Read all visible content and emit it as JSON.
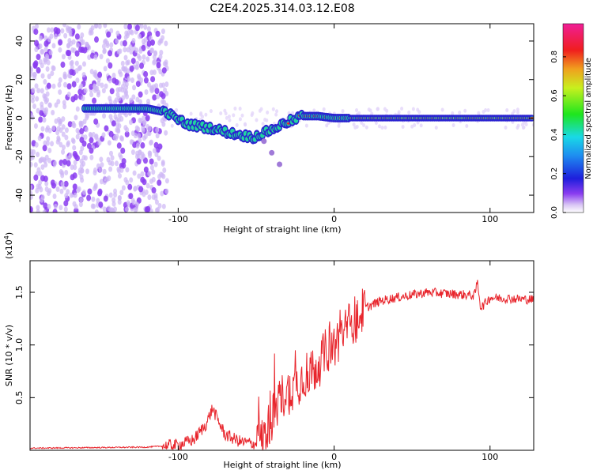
{
  "title": "C2E4.2025.314.03.12.E08",
  "colors": {
    "snr_line": "#e8252c",
    "track_core": "#e8252c",
    "track_mid": "#22d3a0",
    "track_edge": "#2a22d0",
    "noise": "#8a3cf0"
  },
  "chart_data": [
    {
      "type": "heatmap",
      "name": "spectrogram",
      "xlabel": "Height of straight line (km)",
      "ylabel": "Frequency (Hz)",
      "xlim": [
        -195,
        128
      ],
      "ylim": [
        -49,
        49
      ],
      "xticks": [
        "-100",
        "0",
        "100"
      ],
      "yticks": [
        "-40",
        "-20",
        "0",
        "20",
        "40"
      ],
      "colorbar": {
        "label": "Normalized spectral amplitude",
        "ticks": [
          "0.0",
          "0.2",
          "0.4",
          "0.6",
          "0.8"
        ],
        "range": [
          0,
          0.97
        ]
      },
      "track": {
        "description_points": [
          [
            -160,
            5
          ],
          [
            -120,
            5
          ],
          [
            -108,
            3
          ],
          [
            -95,
            -3
          ],
          [
            -80,
            -5
          ],
          [
            -65,
            -8
          ],
          [
            -52,
            -10
          ],
          [
            -40,
            -6
          ],
          [
            -30,
            -2
          ],
          [
            -20,
            1
          ],
          [
            -10,
            1
          ],
          [
            0,
            0
          ],
          [
            20,
            0
          ],
          [
            60,
            0
          ],
          [
            128,
            0
          ]
        ],
        "branch": [
          [
            -45,
            -12
          ],
          [
            -40,
            -18
          ],
          [
            -35,
            -24
          ]
        ],
        "noise_region_xmax": -107
      }
    },
    {
      "type": "line",
      "name": "snr",
      "xlabel": "Height of straight line (km)",
      "ylabel": "SNR (10 * v/v)",
      "multiplier": "(x10",
      "multiplier_exp": "4",
      "multiplier_close": ")",
      "xlim": [
        -195,
        128
      ],
      "ylim": [
        0,
        1.8
      ],
      "xticks": [
        "-100",
        "0",
        "100"
      ],
      "yticks": [
        "0.5",
        "1.0",
        "1.5"
      ],
      "series": [
        {
          "name": "SNR",
          "x": [
            -195,
            -120,
            -100,
            -90,
            -82,
            -78,
            -75,
            -70,
            -60,
            -50,
            -45,
            -40,
            -35,
            -30,
            -25,
            -20,
            -15,
            -10,
            -5,
            0,
            10,
            20,
            30,
            40,
            60,
            80,
            90,
            92,
            94,
            100,
            128
          ],
          "y": [
            0.02,
            0.03,
            0.05,
            0.1,
            0.25,
            0.4,
            0.3,
            0.15,
            0.08,
            0.06,
            0.12,
            0.3,
            0.5,
            0.55,
            0.6,
            0.7,
            0.75,
            0.8,
            0.95,
            1.0,
            1.2,
            1.35,
            1.42,
            1.45,
            1.5,
            1.48,
            1.47,
            1.6,
            1.35,
            1.45,
            1.43
          ]
        }
      ]
    }
  ]
}
